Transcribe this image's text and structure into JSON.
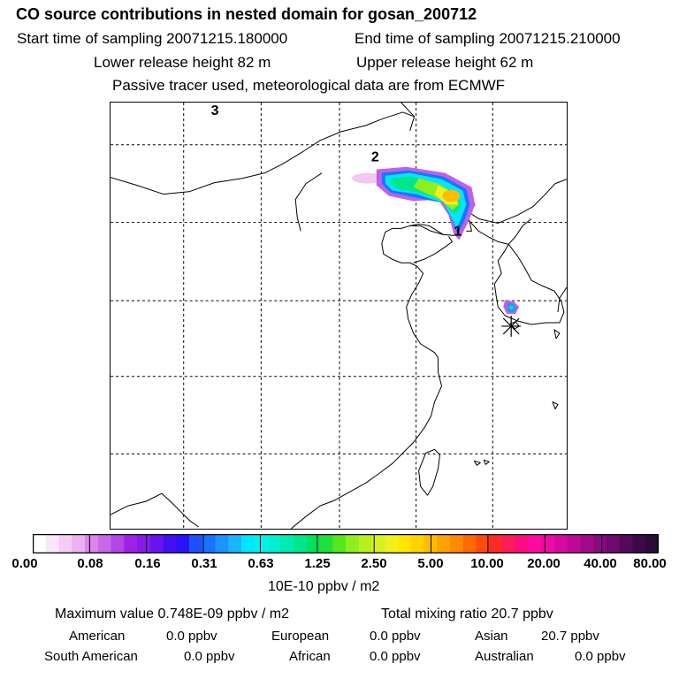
{
  "header": {
    "title": "CO  source contributions in nested domain for gosan_200712",
    "start_time": "Start time of sampling 20071215.180000",
    "end_time": "End time of sampling 20071215.210000",
    "lower_release": "Lower release height   82 m",
    "upper_release": "Upper release height   62 m",
    "tracer_note": "Passive tracer used, meteorological data are from ECMWF"
  },
  "map": {
    "point_labels": [
      "1",
      "2",
      "3"
    ],
    "receptor_symbol": "asterisk-icon"
  },
  "colorbar": {
    "ticks": [
      "0.00",
      "0.08",
      "0.16",
      "0.31",
      "0.63",
      "1.25",
      "2.50",
      "5.00",
      "10.00",
      "20.00",
      "40.00",
      "80.00"
    ],
    "unit_label": "10E-10 ppbv / m2",
    "colors": [
      "#ffffff",
      "#fbe6fb",
      "#f4cdf4",
      "#ebb2ee",
      "#d988ea",
      "#c768e8",
      "#b445e6",
      "#a020e6",
      "#8a1ae8",
      "#6814ee",
      "#4410f2",
      "#2a14f6",
      "#1a52ff",
      "#1a73ff",
      "#1a94ff",
      "#1ab4ff",
      "#00e6ff",
      "#00f0ee",
      "#00f0d0",
      "#00ebb0",
      "#00e68a",
      "#00e060",
      "#1ee03a",
      "#55e61e",
      "#90ee1e",
      "#b8f01e",
      "#d8f01e",
      "#f0f01e",
      "#ffe600",
      "#ffd200",
      "#ffbb00",
      "#ffa200",
      "#ff8a00",
      "#ff6a00",
      "#ff4a10",
      "#ff2a28",
      "#ff1a5a",
      "#ff0a80",
      "#ff0aa0",
      "#ee0aa6",
      "#d60aa0",
      "#bd0a96",
      "#a00a8a",
      "#880a7e",
      "#6e0a6e",
      "#540a5a",
      "#3c0a48",
      "#2a0a36"
    ]
  },
  "footer": {
    "max_value": "Maximum value  0.748E-09 ppbv / m2",
    "total_mixing": "Total mixing ratio       20.7 ppbv",
    "american_label": "American",
    "american_value": "0.0 ppbv",
    "european_label": "European",
    "european_value": "0.0 ppbv",
    "asian_label": "Asian",
    "asian_value": "20.7 ppbv",
    "south_american_label": "South American",
    "south_american_value": "0.0 ppbv",
    "african_label": "African",
    "african_value": "0.0 ppbv",
    "australian_label": "Australian",
    "australian_value": "0.0 ppbv"
  }
}
